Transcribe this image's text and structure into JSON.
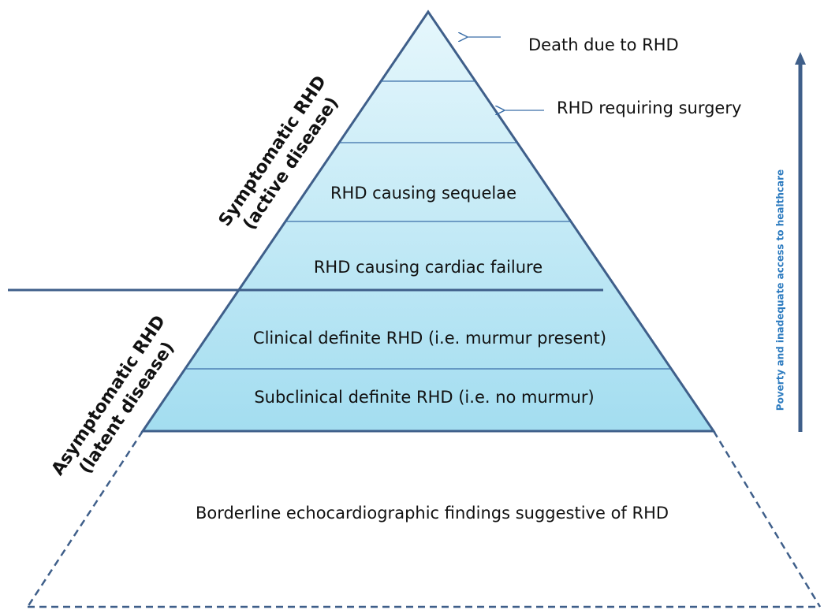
{
  "pyramid_levels": [
    "Death due to RHD",
    "RHD requiring surgery",
    "RHD causing sequelae",
    "RHD causing cardiac failure",
    "Clinical definite RHD (i.e. murmur present)",
    "Subclinical definite RHD (i.e. no murmur)",
    "Borderline echocardiographic findings suggestive of RHD"
  ],
  "side_labels": {
    "symptomatic": {
      "line1": "Symptomatic RHD",
      "line2": "(active disease)"
    },
    "asymptomatic": {
      "line1": "Asymptomatic RHD",
      "line2": "(latent disease)"
    }
  },
  "arrow_label": "Poverty and inadequate access to healthcare"
}
